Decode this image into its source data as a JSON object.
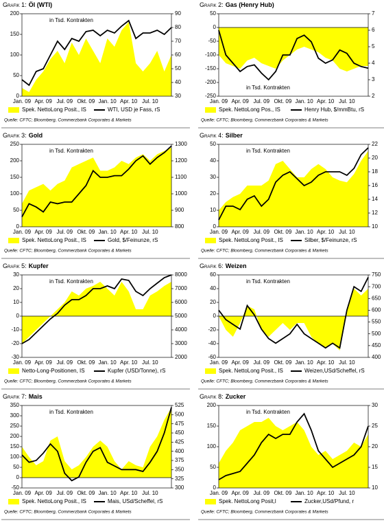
{
  "chart_data": [
    {
      "type": "combo",
      "label": "Grafik 1:",
      "title": "Öl (WTI)",
      "annotation": "in Tsd. Kontrakten",
      "source": "Quelle: CFTC; Bloomberg, Commerzbank Corporates & Markets",
      "categories": [
        "Jan. 09",
        null,
        null,
        "Apr. 09",
        null,
        null,
        "Jul. 09",
        null,
        null,
        "Okt. 09",
        null,
        null,
        "Jan. 10",
        null,
        null,
        "Apr. 10",
        null,
        null,
        "Jul. 10",
        null,
        null,
        null
      ],
      "ylim": [
        0,
        200
      ],
      "yticks": [
        0,
        50,
        100,
        150,
        200
      ],
      "y2lim": [
        30,
        90
      ],
      "y2ticks": [
        30,
        40,
        50,
        60,
        70,
        80,
        90
      ],
      "series": [
        {
          "name": "Spek. NettoLong Posit., IS",
          "kind": "area",
          "color": "#ffff00",
          "values": [
            20,
            10,
            40,
            60,
            90,
            110,
            80,
            130,
            100,
            140,
            110,
            80,
            140,
            120,
            160,
            180,
            80,
            60,
            80,
            110,
            60,
            100
          ]
        },
        {
          "name": "WTI, USD je Fass, rS",
          "kind": "line",
          "axis": "y2",
          "color": "#000000",
          "values": [
            42,
            38,
            48,
            50,
            60,
            70,
            64,
            72,
            70,
            77,
            78,
            74,
            78,
            76,
            81,
            85,
            72,
            76,
            76,
            78,
            75,
            80
          ]
        }
      ]
    },
    {
      "type": "combo",
      "label": "Grafik 2:",
      "title": "Gas (Henry Hub)",
      "annotation": "in Tsd. Kontrakten",
      "source": "Quelle: CFTC; Bloomberg, Commerzbank Corporates & Markets",
      "categories": [
        "Jan. 09",
        null,
        null,
        "Apr. 09",
        null,
        null,
        "Jul. 09",
        null,
        null,
        "Okt. 09",
        null,
        null,
        "Jan. 10",
        null,
        null,
        "Apr. 10",
        null,
        null,
        "Jul. 10",
        null,
        null,
        null
      ],
      "ylim": [
        -250,
        50
      ],
      "yticks": [
        -250,
        -200,
        -150,
        -100,
        -50,
        0,
        50
      ],
      "y2lim": [
        2,
        7
      ],
      "y2ticks": [
        2,
        3,
        4,
        5,
        6,
        7
      ],
      "series": [
        {
          "name": "Spek. NettoLong Pos., IS",
          "kind": "area",
          "color": "#ffff00",
          "values": [
            -100,
            -130,
            -140,
            -150,
            -120,
            -110,
            -130,
            -140,
            -150,
            -120,
            -100,
            -80,
            -70,
            -80,
            -90,
            -110,
            -120,
            -150,
            -160,
            -150,
            -140,
            -140
          ]
        },
        {
          "name": "Henry Hub, $/mmBtu, rS",
          "kind": "line",
          "axis": "y2",
          "color": "#000000",
          "values": [
            6,
            4.5,
            4,
            3.5,
            3.8,
            3.9,
            3.4,
            3,
            3.5,
            4.5,
            4.5,
            5.5,
            5.7,
            5.3,
            4.3,
            4,
            4.2,
            4.8,
            4.6,
            4,
            3.8,
            3.7
          ]
        }
      ]
    },
    {
      "type": "combo",
      "label": "Grafik 3:",
      "title": "Gold",
      "annotation": "in Tsd. Kontrakten",
      "source": "Quelle: CFTC; Bloomberg, Commerzbank Corporates & Markets",
      "categories": [
        "Jan. 09",
        null,
        null,
        "Apr. 09",
        null,
        null,
        "Jul. 09",
        null,
        null,
        "Okt. 09",
        null,
        null,
        "Jan. 10",
        null,
        null,
        "Apr. 10",
        null,
        null,
        "Jul. 10",
        null,
        null,
        null
      ],
      "ylim": [
        0,
        250
      ],
      "yticks": [
        0,
        50,
        100,
        150,
        200,
        250
      ],
      "y2lim": [
        800,
        1300
      ],
      "y2ticks": [
        800,
        900,
        1000,
        1100,
        1200,
        1300
      ],
      "series": [
        {
          "name": "Spek. NettoLong Posit., IS",
          "kind": "area",
          "color": "#ffff00",
          "values": [
            70,
            110,
            120,
            130,
            110,
            130,
            140,
            180,
            190,
            200,
            210,
            170,
            170,
            180,
            200,
            190,
            210,
            220,
            200,
            220,
            230,
            240
          ]
        },
        {
          "name": "Gold, $/Feinunze, rS",
          "kind": "line",
          "axis": "y2",
          "color": "#000000",
          "values": [
            860,
            940,
            920,
            890,
            950,
            940,
            950,
            950,
            1000,
            1050,
            1140,
            1100,
            1100,
            1110,
            1110,
            1150,
            1200,
            1230,
            1180,
            1220,
            1250,
            1290
          ]
        }
      ]
    },
    {
      "type": "combo",
      "label": "Grafik 4:",
      "title": "Silber",
      "annotation": "in Tsd. Kontrakten",
      "source": "Quelle: CFTC; Bloomberg, Commerzbank Corporates & Markets",
      "categories": [
        "Jan. 09",
        null,
        null,
        "Apr. 09",
        null,
        null,
        "Jul. 09",
        null,
        null,
        "Okt. 09",
        null,
        null,
        "Jan. 10",
        null,
        null,
        "Apr. 10",
        null,
        null,
        "Jul. 10",
        null,
        null,
        null
      ],
      "ylim": [
        0,
        50
      ],
      "yticks": [
        0,
        10,
        20,
        30,
        40,
        50
      ],
      "y2lim": [
        10,
        22
      ],
      "y2ticks": [
        10,
        12,
        14,
        16,
        18,
        20,
        22
      ],
      "series": [
        {
          "name": "Spek. NettoLong Posit., IS",
          "kind": "area",
          "color": "#ffff00",
          "values": [
            10,
            15,
            18,
            20,
            25,
            25,
            25,
            28,
            38,
            40,
            35,
            30,
            30,
            35,
            38,
            35,
            30,
            28,
            27,
            32,
            40,
            46
          ]
        },
        {
          "name": "Silber, $/Feinunze, rS",
          "kind": "line",
          "axis": "y2",
          "color": "#000000",
          "values": [
            11,
            13,
            13,
            12.5,
            14,
            14.5,
            13,
            14,
            16.5,
            17.5,
            18,
            17,
            16,
            16.5,
            17.5,
            18,
            18,
            18,
            17.5,
            18.5,
            20.5,
            21.5
          ]
        }
      ]
    },
    {
      "type": "combo",
      "label": "Grafik 5:",
      "title": "Kupfer",
      "annotation": "in Tsd. Kontrakten",
      "source": "Quelle: CFTC; Bloomberg, Commerzbank Corporates & Markets",
      "categories": [
        "Jan. 09",
        null,
        null,
        "Apr. 09",
        null,
        null,
        "Jul. 09",
        null,
        null,
        "Okt. 09",
        null,
        null,
        "Jan. 10",
        null,
        null,
        "Apr. 10",
        null,
        null,
        "Jul. 10",
        null,
        null,
        null
      ],
      "ylim": [
        -30,
        30
      ],
      "yticks": [
        -30,
        -20,
        -10,
        0,
        10,
        20,
        30
      ],
      "y2lim": [
        2000,
        8000
      ],
      "y2ticks": [
        2000,
        3000,
        4000,
        5000,
        6000,
        7000,
        8000
      ],
      "series": [
        {
          "name": "Netto-Long-Positionen, IS",
          "kind": "area",
          "color": "#ffff00",
          "values": [
            -20,
            -15,
            -10,
            -5,
            0,
            5,
            10,
            18,
            15,
            20,
            22,
            25,
            20,
            15,
            25,
            18,
            5,
            5,
            15,
            18,
            22,
            25
          ]
        },
        {
          "name": "Kupfer (USD/Tonne), rS",
          "kind": "line",
          "axis": "y2",
          "color": "#000000",
          "values": [
            3000,
            3300,
            3800,
            4300,
            4800,
            5200,
            5800,
            6200,
            6200,
            6500,
            7000,
            7000,
            7200,
            7000,
            7700,
            7600,
            6800,
            6500,
            7000,
            7400,
            7800,
            8000
          ]
        }
      ]
    },
    {
      "type": "combo",
      "label": "Grafik 6:",
      "title": "Weizen",
      "annotation": "in Tsd. Kontrakten",
      "source": "Quelle: CFTC; Bloomberg, Commerzbank Corporates & Markets",
      "categories": [
        "Jan. 09",
        null,
        null,
        "Apr. 09",
        null,
        null,
        "Jul. 09",
        null,
        null,
        "Okt. 09",
        null,
        null,
        "Jan. 10",
        null,
        null,
        "Apr. 10",
        null,
        null,
        "Jul. 10",
        null,
        null,
        null
      ],
      "ylim": [
        -60,
        60
      ],
      "yticks": [
        -60,
        -40,
        -20,
        0,
        20,
        40,
        60
      ],
      "y2lim": [
        400,
        750
      ],
      "y2ticks": [
        400,
        450,
        500,
        550,
        600,
        650,
        700,
        750
      ],
      "series": [
        {
          "name": "Spek. NettoLong Posit., IS",
          "kind": "area",
          "color": "#ffff00",
          "values": [
            0,
            -20,
            -30,
            -10,
            15,
            10,
            -20,
            -30,
            -20,
            -10,
            -20,
            -10,
            -10,
            -30,
            -40,
            -45,
            -40,
            -50,
            10,
            40,
            30,
            40
          ]
        },
        {
          "name": "Weizen,USd/Scheffel, rS",
          "kind": "line",
          "axis": "y2",
          "color": "#000000",
          "values": [
            600,
            560,
            540,
            520,
            620,
            580,
            520,
            480,
            460,
            480,
            500,
            540,
            500,
            480,
            460,
            440,
            460,
            440,
            600,
            700,
            680,
            740
          ]
        }
      ]
    },
    {
      "type": "combo",
      "label": "Grafik 7:",
      "title": "Mais",
      "annotation": "in Tsd. Kontrakten",
      "source": "Quelle: CFTC; Bloomberg, Commerzbank Corporates & Markets",
      "categories": [
        "Jan. 09",
        null,
        null,
        "Apr. 09",
        null,
        null,
        "Jul. 09",
        null,
        null,
        "Okt. 09",
        null,
        null,
        "Jan. 10",
        null,
        null,
        "Apr. 10",
        null,
        null,
        "Jul. 10",
        null,
        null,
        null
      ],
      "ylim": [
        -50,
        350
      ],
      "yticks": [
        -50,
        0,
        50,
        100,
        150,
        200,
        250,
        300,
        350
      ],
      "y2lim": [
        300,
        525
      ],
      "y2ticks": [
        300,
        325,
        350,
        375,
        400,
        425,
        450,
        475,
        500,
        525
      ],
      "series": [
        {
          "name": "Spek. NettoLong Posit., IS",
          "kind": "area",
          "color": "#ffff00",
          "values": [
            150,
            100,
            60,
            80,
            180,
            200,
            80,
            40,
            60,
            100,
            150,
            180,
            150,
            80,
            40,
            80,
            60,
            50,
            150,
            200,
            280,
            340
          ]
        },
        {
          "name": "Mais, USd/Scheffel, rS",
          "kind": "line",
          "axis": "y2",
          "color": "#000000",
          "values": [
            390,
            370,
            375,
            395,
            420,
            400,
            340,
            320,
            330,
            370,
            400,
            410,
            370,
            360,
            350,
            350,
            350,
            345,
            370,
            400,
            450,
            520
          ]
        }
      ]
    },
    {
      "type": "combo",
      "label": "Grafik 8:",
      "title": "Zucker",
      "annotation": "in Tsd. Kontrakten",
      "source": "Quelle: CFTC; Bloomberg, Commerzbank Corporates & Markets",
      "categories": [
        "Jan. 09",
        null,
        null,
        "Apr. 09",
        null,
        null,
        "Jul. 09",
        null,
        null,
        "Okt. 09",
        null,
        null,
        "Jan. 10",
        null,
        null,
        "Apr. 10",
        null,
        null,
        "Jul. 10",
        null,
        null,
        null
      ],
      "ylim": [
        0,
        200
      ],
      "yticks": [
        0,
        50,
        100,
        150,
        200
      ],
      "y2lim": [
        10,
        30
      ],
      "y2ticks": [
        10,
        15,
        20,
        25,
        30
      ],
      "series": [
        {
          "name": "Spek. NettoLong Posit,l",
          "kind": "area",
          "color": "#ffff00",
          "values": [
            60,
            90,
            110,
            140,
            150,
            160,
            160,
            170,
            150,
            140,
            150,
            160,
            140,
            100,
            80,
            90,
            70,
            80,
            90,
            110,
            100,
            130
          ]
        },
        {
          "name": "Zucker,USd/Pfund, r",
          "kind": "line",
          "axis": "y2",
          "color": "#000000",
          "values": [
            12,
            13,
            13.5,
            14,
            16,
            18,
            21,
            23,
            22,
            23,
            23,
            26,
            28,
            24,
            19,
            17,
            15,
            16,
            17,
            18,
            20,
            25
          ]
        }
      ]
    }
  ]
}
